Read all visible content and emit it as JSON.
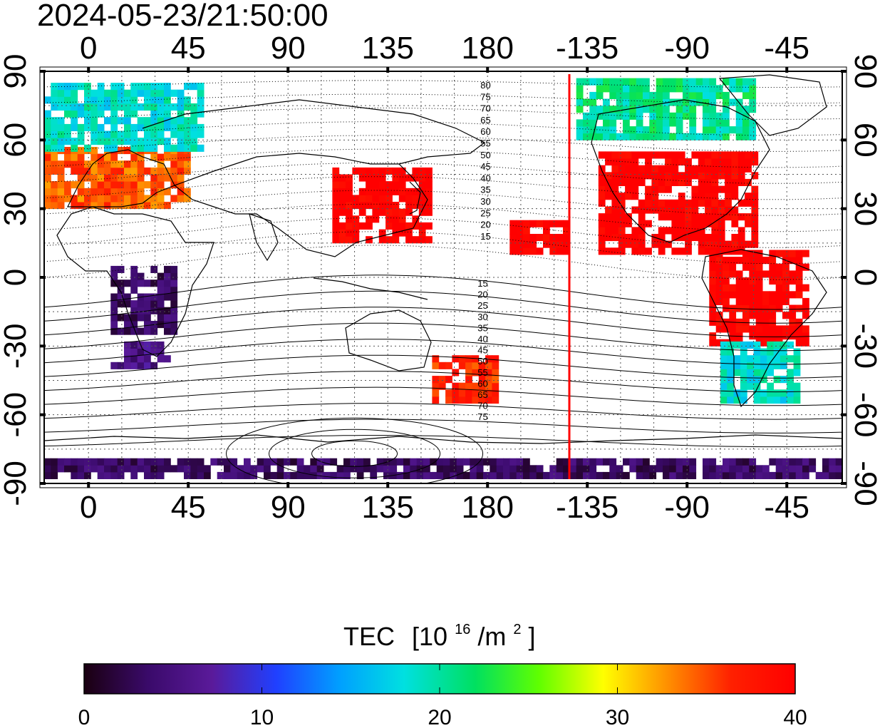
{
  "timestamp": "2024-05-23/21:50:00",
  "top_lon_labels": [
    "0",
    "45",
    "90",
    "135",
    "180",
    "-135",
    "-90",
    "-45"
  ],
  "bottom_lon_labels": [
    "0",
    "45",
    "90",
    "135",
    "180",
    "-135",
    "-90",
    "-45"
  ],
  "left_lat_labels": [
    "90",
    "60",
    "30",
    "0",
    "-30",
    "-60",
    "-90"
  ],
  "right_lat_labels": [
    "90",
    "60",
    "30",
    "0",
    "-30",
    "-60",
    "-90"
  ],
  "contour_labels_north": [
    "80",
    "75",
    "70",
    "65",
    "60",
    "55",
    "50",
    "45",
    "40",
    "35",
    "30",
    "25",
    "20",
    "15"
  ],
  "contour_labels_south": [
    "15",
    "20",
    "25",
    "30",
    "35",
    "40",
    "45",
    "50",
    "55",
    "60",
    "65",
    "70",
    "75"
  ],
  "colorbar": {
    "title_main": "TEC",
    "title_unit_open": "[10",
    "title_unit_exp": "16",
    "title_unit_mid": "/m",
    "title_unit_exp2": "2",
    "title_unit_close": "]",
    "tick_labels": [
      "0",
      "10",
      "20",
      "30",
      "40"
    ],
    "range": [
      0,
      40
    ],
    "colors": [
      "#1a0010",
      "#3a0a6a",
      "#5a1a9a",
      "#2040ff",
      "#00a0ff",
      "#00e0e0",
      "#00e060",
      "#60ff00",
      "#ffff00",
      "#ff9000",
      "#ff2000",
      "#ff0000"
    ]
  },
  "map": {
    "lon_range": [
      -20,
      340
    ],
    "lat_range": [
      -90,
      90
    ],
    "terminator_line_color": "#ff0000",
    "terminator_lon_display": "-145"
  },
  "chart_data": {
    "type": "heatmap",
    "title": "2024-05-23/21:50:00",
    "quantity": "TEC [10^16/m^2]",
    "colorbar_range": [
      0,
      40
    ],
    "x_axis_ticks": [
      0,
      45,
      90,
      135,
      180,
      -135,
      -90,
      -45
    ],
    "y_axis_ticks": [
      90,
      60,
      30,
      0,
      -30,
      -60,
      -90
    ],
    "regions": [
      {
        "lon": [
          -20,
          45
        ],
        "lat": [
          30,
          55
        ],
        "tec": 34
      },
      {
        "lon": [
          -20,
          50
        ],
        "lat": [
          55,
          85
        ],
        "tec": 18
      },
      {
        "lon": [
          110,
          155
        ],
        "lat": [
          15,
          48
        ],
        "tec": 40
      },
      {
        "lon": [
          10,
          40
        ],
        "lat": [
          -25,
          5
        ],
        "tec": 3
      },
      {
        "lon": [
          10,
          35
        ],
        "lat": [
          -40,
          -28
        ],
        "tec": 5
      },
      {
        "lon": [
          -130,
          -60
        ],
        "lat": [
          10,
          55
        ],
        "tec": 40
      },
      {
        "lon": [
          -80,
          -35
        ],
        "lat": [
          -30,
          10
        ],
        "tec": 40
      },
      {
        "lon": [
          -75,
          -40
        ],
        "lat": [
          -55,
          -30
        ],
        "tec": 18
      },
      {
        "lon": [
          -140,
          -60
        ],
        "lat": [
          60,
          85
        ],
        "tec": 20
      },
      {
        "lon": [
          -20,
          340
        ],
        "lat": [
          -88,
          -80
        ],
        "tec": 3
      },
      {
        "lon": [
          155,
          185
        ],
        "lat": [
          -55,
          -35
        ],
        "tec": 36
      },
      {
        "lon": [
          -170,
          -145
        ],
        "lat": [
          10,
          25
        ],
        "tec": 40
      }
    ]
  }
}
